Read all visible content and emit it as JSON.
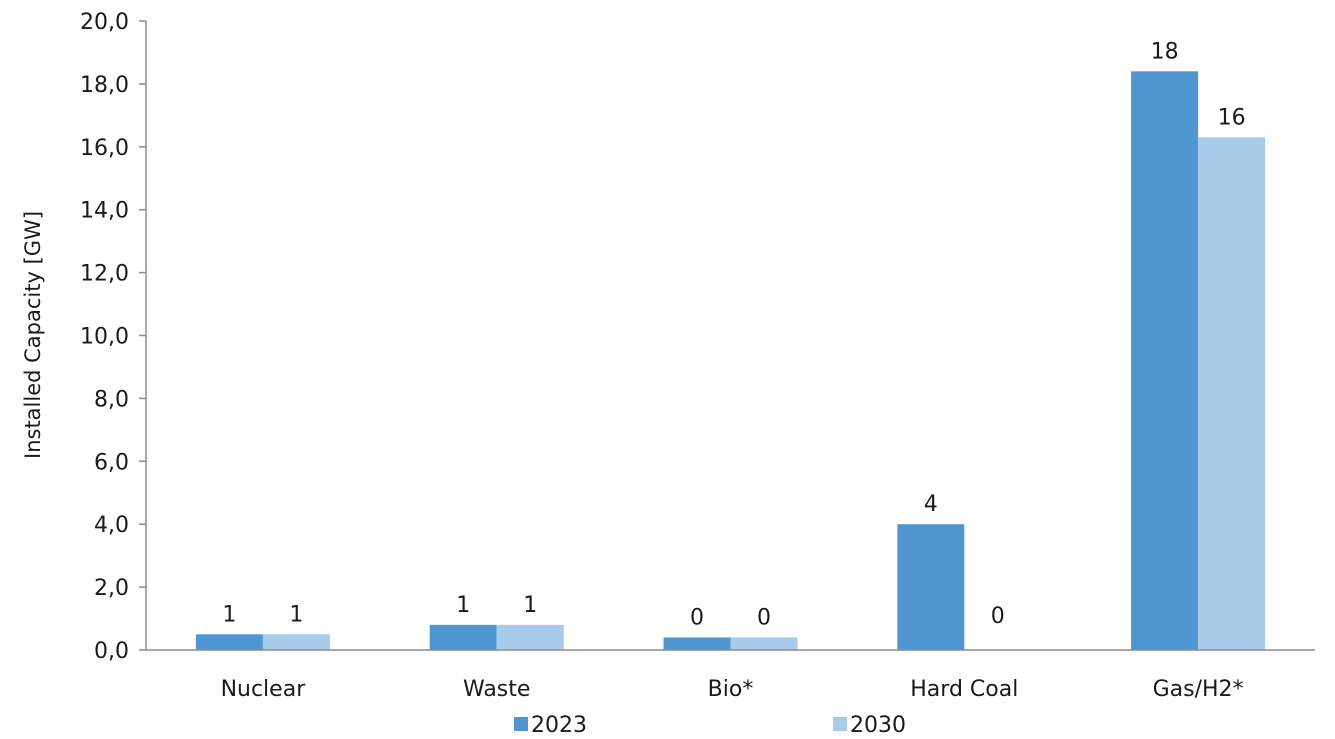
{
  "chart_data": {
    "type": "bar",
    "title": "",
    "xlabel": "",
    "ylabel": "Installed Capacity [GW]",
    "ylim": [
      0,
      20
    ],
    "yticks": [
      "0,0",
      "2,0",
      "4,0",
      "6,0",
      "8,0",
      "10,0",
      "12,0",
      "14,0",
      "16,0",
      "18,0",
      "20,0"
    ],
    "categories": [
      "Nuclear",
      "Waste",
      "Bio*",
      "Hard Coal",
      "Gas/H2*"
    ],
    "legend_position": "bottom",
    "series": [
      {
        "name": "2023",
        "color": "#5097d1",
        "values": [
          0.5,
          0.8,
          0.4,
          4.0,
          18.4
        ],
        "labels": [
          "1",
          "1",
          "0",
          "4",
          "18"
        ]
      },
      {
        "name": "2030",
        "color": "#a8cbea",
        "values": [
          0.5,
          0.8,
          0.4,
          0.0,
          16.3
        ],
        "labels": [
          "1",
          "1",
          "0",
          "0",
          "16"
        ]
      }
    ]
  }
}
